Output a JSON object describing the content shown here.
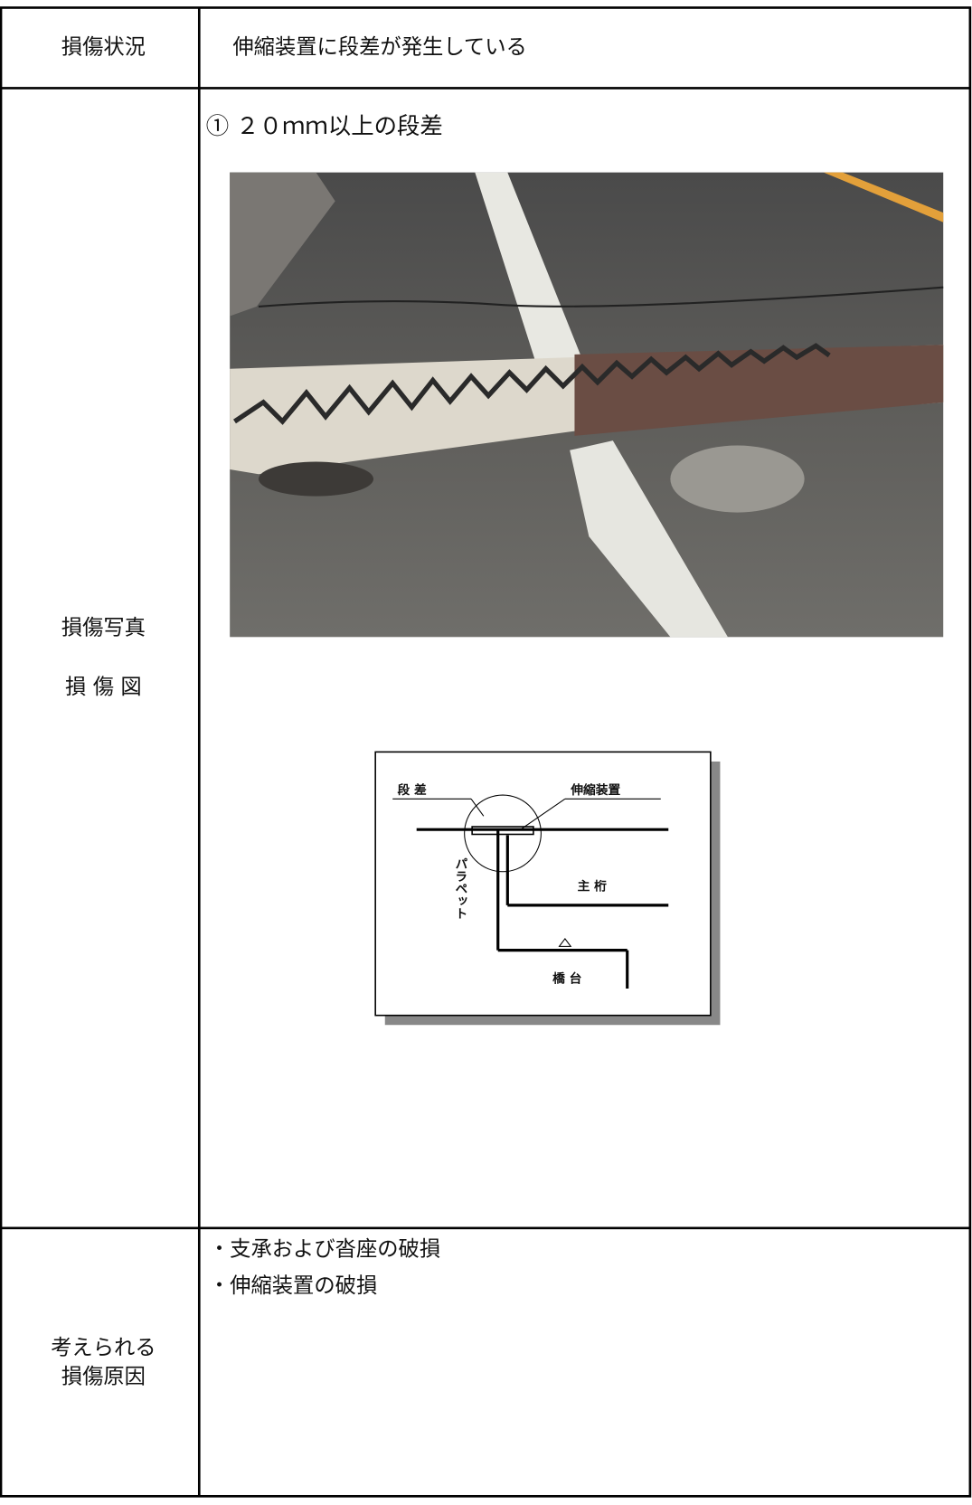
{
  "table": {
    "rows": [
      {
        "label": "損傷状況",
        "content": "伸縮装置に段差が発生している"
      },
      {
        "label": [
          "損傷写真",
          "損 傷 図"
        ],
        "caption": "① ２０ｍｍ以上の段差",
        "diagram": {
          "step": "段 差",
          "joint": "伸縮装置",
          "parapet": "パラペット",
          "girder": "主 桁",
          "abutment": "橋 台"
        }
      },
      {
        "label": [
          "考えられる",
          "損傷原因"
        ],
        "items": [
          "・支承および沓座の破損",
          "・伸縮装置の破損"
        ]
      }
    ]
  }
}
